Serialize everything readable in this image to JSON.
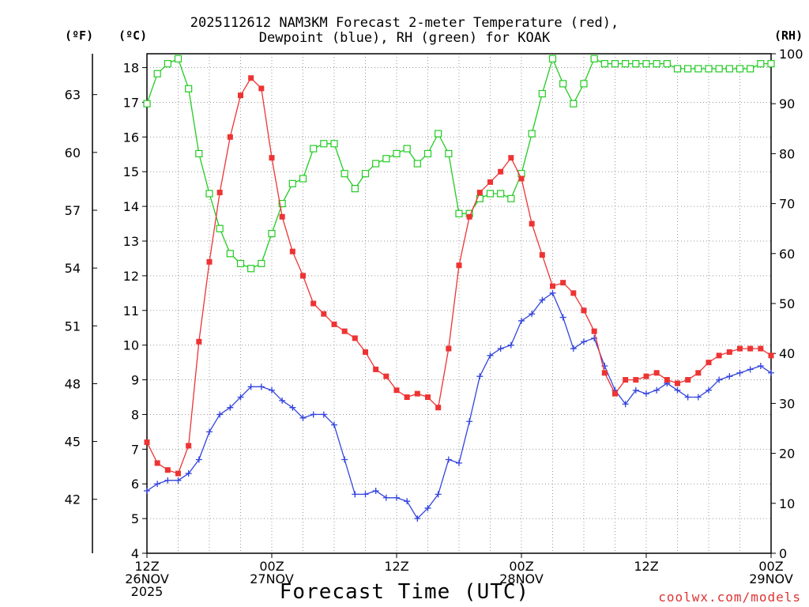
{
  "title_line1": "2025112612 NAM3KM Forecast 2-meter Temperature (red),",
  "title_line2": "Dewpoint (blue), RH (green) for KOAK",
  "unit_f": "(ºF)",
  "unit_c": "(ºC)",
  "unit_rh": "(RH)",
  "x_title": "Forecast Time (UTC)",
  "credit": "coolwx.com/models",
  "colors": {
    "temperature": "#ee3333",
    "dewpoint": "#3344dd",
    "rh": "#22cc22",
    "grid": "#999999"
  },
  "chart_data": {
    "type": "line",
    "title": "2025112612 NAM3KM Forecast 2-meter Temperature (red), Dewpoint (blue), RH (green) for KOAK",
    "xlabel": "Forecast Time (UTC)",
    "x_range_hours": [
      0,
      60
    ],
    "x_ticks": [
      {
        "hour": 0,
        "lines": [
          "12Z",
          "26NOV",
          "2025"
        ]
      },
      {
        "hour": 12,
        "lines": [
          "00Z",
          "27NOV"
        ]
      },
      {
        "hour": 24,
        "lines": [
          "12Z"
        ]
      },
      {
        "hour": 36,
        "lines": [
          "00Z",
          "28NOV"
        ]
      },
      {
        "hour": 48,
        "lines": [
          "12Z"
        ]
      },
      {
        "hour": 60,
        "lines": [
          "00Z",
          "29NOV"
        ]
      }
    ],
    "y_celsius": {
      "range": [
        4,
        18.4
      ],
      "ticks": [
        4,
        5,
        6,
        7,
        8,
        9,
        10,
        11,
        12,
        13,
        14,
        15,
        16,
        17,
        18
      ]
    },
    "y_fahrenheit": {
      "ticks": [
        42,
        45,
        48,
        51,
        54,
        57,
        60,
        63
      ]
    },
    "y_rh": {
      "range": [
        0,
        100
      ],
      "ticks": [
        0,
        10,
        20,
        30,
        40,
        50,
        60,
        70,
        80,
        90,
        100
      ]
    },
    "grid": true,
    "x_hours": [
      0,
      1,
      2,
      3,
      4,
      5,
      6,
      7,
      8,
      9,
      10,
      11,
      12,
      13,
      14,
      15,
      16,
      17,
      18,
      19,
      20,
      21,
      22,
      23,
      24,
      25,
      26,
      27,
      28,
      29,
      30,
      31,
      32,
      33,
      34,
      35,
      36,
      37,
      38,
      39,
      40,
      41,
      42,
      43,
      44,
      45,
      46,
      47,
      48,
      49,
      50,
      51,
      52,
      53,
      54,
      55,
      56,
      57,
      58,
      59,
      60
    ],
    "series": [
      {
        "name": "Temperature",
        "units": "C",
        "values": [
          7.2,
          6.6,
          6.4,
          6.3,
          7.1,
          10.1,
          12.4,
          14.4,
          16.0,
          17.2,
          17.7,
          17.4,
          15.4,
          13.7,
          12.7,
          12.0,
          11.2,
          10.9,
          10.6,
          10.4,
          10.2,
          9.8,
          9.3,
          9.1,
          8.7,
          8.5,
          8.6,
          8.5,
          8.2,
          9.9,
          12.3,
          13.7,
          14.4,
          14.7,
          15.0,
          15.4,
          14.8,
          13.5,
          12.6,
          11.7,
          11.8,
          11.5,
          11.0,
          10.4,
          9.2,
          8.6,
          9.0,
          9.0,
          9.1,
          9.2,
          9.0,
          8.9,
          9.0,
          9.2,
          9.5,
          9.7,
          9.8,
          9.9,
          9.9,
          9.9,
          9.7
        ]
      },
      {
        "name": "Dewpoint",
        "units": "C",
        "values": [
          5.8,
          6.0,
          6.1,
          6.1,
          6.3,
          6.7,
          7.5,
          8.0,
          8.2,
          8.5,
          8.8,
          8.8,
          8.7,
          8.4,
          8.2,
          7.9,
          8.0,
          8.0,
          7.7,
          6.7,
          5.7,
          5.7,
          5.8,
          5.6,
          5.6,
          5.5,
          5.0,
          5.3,
          5.7,
          6.7,
          6.6,
          7.8,
          9.1,
          9.7,
          9.9,
          10.0,
          10.7,
          10.9,
          11.3,
          11.5,
          10.8,
          9.9,
          10.1,
          10.2,
          9.4,
          8.7,
          8.3,
          8.7,
          8.6,
          8.7,
          8.9,
          8.7,
          8.5,
          8.5,
          8.7,
          9.0,
          9.1,
          9.2,
          9.3,
          9.4,
          9.2
        ]
      },
      {
        "name": "RH",
        "units": "%",
        "values": [
          90,
          96,
          98,
          99,
          93,
          80,
          72,
          65,
          60,
          58,
          57,
          58,
          64,
          70,
          74,
          75,
          81,
          82,
          82,
          76,
          73,
          76,
          78,
          79,
          80,
          81,
          78,
          80,
          84,
          80,
          68,
          68,
          71,
          72,
          72,
          71,
          76,
          84,
          92,
          99,
          94,
          90,
          94,
          99,
          98,
          98,
          98,
          98,
          98,
          98,
          98,
          97,
          97,
          97,
          97,
          97,
          97,
          97,
          97,
          98,
          98
        ]
      }
    ]
  }
}
